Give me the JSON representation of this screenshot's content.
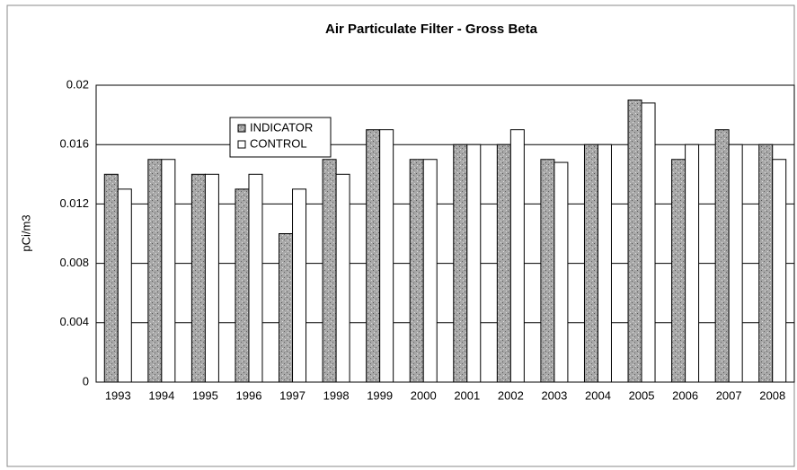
{
  "chart_data": {
    "type": "bar",
    "title": "Air Particulate Filter - Gross Beta",
    "y_label": "pCi/m3",
    "categories": [
      "1993",
      "1994",
      "1995",
      "1996",
      "1997",
      "1998",
      "1999",
      "2000",
      "2001",
      "2002",
      "2003",
      "2004",
      "2005",
      "2006",
      "2007",
      "2008"
    ],
    "series": [
      {
        "name": "INDICATOR",
        "color": "#a0a0a0",
        "values": [
          0.014,
          0.015,
          0.014,
          0.013,
          0.01,
          0.015,
          0.017,
          0.015,
          0.016,
          0.016,
          0.015,
          0.016,
          0.019,
          0.015,
          0.017,
          0.016
        ]
      },
      {
        "name": "CONTROL",
        "color": "#ffffff",
        "values": [
          0.013,
          0.015,
          0.014,
          0.014,
          0.013,
          0.014,
          0.017,
          0.015,
          0.016,
          0.017,
          0.0148,
          0.016,
          0.0188,
          0.016,
          0.016,
          0.015
        ]
      }
    ],
    "ylim": [
      0,
      0.02
    ],
    "yticks": [
      0,
      0.004,
      0.008,
      0.012,
      0.016,
      0.02
    ],
    "grid": true
  }
}
